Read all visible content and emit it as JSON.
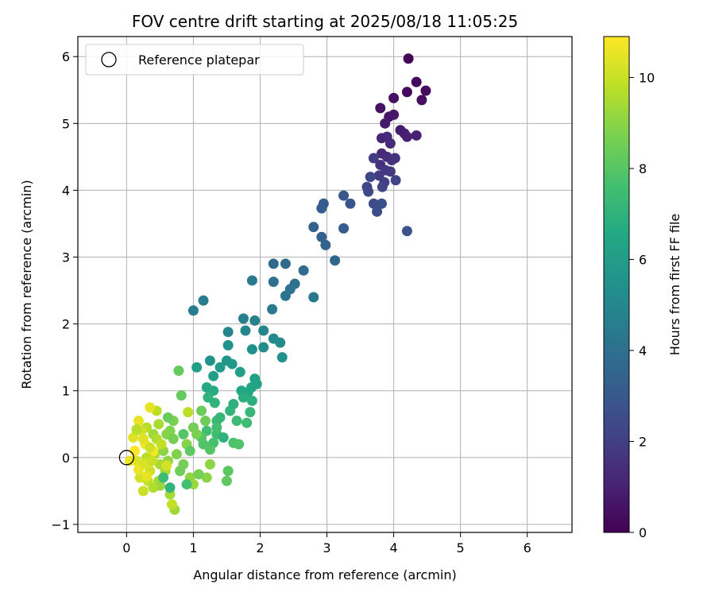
{
  "chart_data": {
    "type": "scatter",
    "title": "FOV centre drift starting at 2025/08/18 11:05:25",
    "xlabel": "Angular distance from reference (arcmin)",
    "ylabel": "Rotation from reference (arcmin)",
    "xlim": [
      -0.73,
      6.67
    ],
    "ylim": [
      -1.12,
      6.3
    ],
    "xticks": [
      0,
      1,
      2,
      3,
      4,
      5,
      6
    ],
    "yticks": [
      -1,
      0,
      1,
      2,
      3,
      4,
      5,
      6
    ],
    "grid": true,
    "legend": {
      "placement": "top-left",
      "label": "Reference platepar"
    },
    "reference_point": {
      "x": 0,
      "y": 0
    },
    "colorbar": {
      "label": "Hours from first FF file",
      "colormap": "viridis",
      "range": [
        0,
        10.9
      ],
      "ticks": [
        0,
        2,
        4,
        6,
        8,
        10
      ]
    },
    "points_columns": [
      "x",
      "y",
      "hours"
    ],
    "points": [
      [
        4.22,
        5.97,
        0.1
      ],
      [
        4.34,
        5.62,
        0.2
      ],
      [
        4.48,
        5.49,
        0.3
      ],
      [
        4.2,
        5.47,
        0.3
      ],
      [
        4.42,
        5.35,
        0.4
      ],
      [
        4.0,
        5.38,
        0.5
      ],
      [
        3.8,
        5.23,
        0.6
      ],
      [
        3.93,
        5.1,
        0.6
      ],
      [
        4.0,
        5.13,
        0.7
      ],
      [
        3.87,
        5.0,
        0.8
      ],
      [
        4.1,
        4.9,
        0.8
      ],
      [
        4.16,
        4.85,
        0.9
      ],
      [
        4.2,
        4.8,
        1.0
      ],
      [
        4.34,
        4.82,
        1.0
      ],
      [
        3.82,
        4.78,
        1.1
      ],
      [
        3.9,
        4.8,
        1.2
      ],
      [
        3.95,
        4.7,
        1.3
      ],
      [
        3.82,
        4.55,
        1.3
      ],
      [
        3.9,
        4.5,
        1.4
      ],
      [
        4.02,
        4.48,
        1.5
      ],
      [
        3.97,
        4.45,
        1.6
      ],
      [
        3.8,
        4.38,
        1.6
      ],
      [
        3.88,
        4.3,
        1.7
      ],
      [
        3.95,
        4.28,
        1.8
      ],
      [
        3.7,
        4.48,
        1.9
      ],
      [
        3.78,
        4.22,
        1.9
      ],
      [
        3.86,
        4.12,
        2.0
      ],
      [
        4.03,
        4.15,
        2.1
      ],
      [
        3.83,
        4.05,
        2.2
      ],
      [
        3.6,
        4.05,
        2.3
      ],
      [
        3.65,
        4.2,
        2.3
      ],
      [
        3.62,
        3.98,
        2.4
      ],
      [
        3.7,
        3.8,
        2.5
      ],
      [
        3.75,
        3.68,
        2.6
      ],
      [
        3.82,
        3.8,
        2.7
      ],
      [
        4.2,
        3.39,
        2.8
      ],
      [
        3.35,
        3.8,
        2.9
      ],
      [
        3.25,
        3.92,
        3.0
      ],
      [
        2.95,
        3.8,
        3.1
      ],
      [
        2.92,
        3.73,
        3.2
      ],
      [
        3.25,
        3.43,
        3.2
      ],
      [
        2.8,
        3.45,
        3.3
      ],
      [
        2.92,
        3.3,
        3.4
      ],
      [
        2.98,
        3.18,
        3.5
      ],
      [
        3.12,
        2.95,
        3.6
      ],
      [
        2.2,
        2.9,
        3.7
      ],
      [
        2.38,
        2.9,
        3.8
      ],
      [
        2.65,
        2.8,
        3.9
      ],
      [
        2.52,
        2.6,
        4.0
      ],
      [
        2.2,
        2.63,
        4.0
      ],
      [
        2.45,
        2.52,
        4.1
      ],
      [
        2.38,
        2.42,
        4.2
      ],
      [
        2.8,
        2.4,
        4.3
      ],
      [
        1.88,
        2.65,
        4.4
      ],
      [
        2.18,
        2.22,
        4.4
      ],
      [
        1.0,
        2.2,
        4.5
      ],
      [
        1.15,
        2.35,
        4.6
      ],
      [
        1.75,
        2.08,
        4.7
      ],
      [
        1.92,
        2.05,
        4.8
      ],
      [
        1.52,
        1.88,
        4.9
      ],
      [
        1.78,
        1.9,
        5.0
      ],
      [
        2.05,
        1.9,
        5.0
      ],
      [
        2.2,
        1.78,
        5.1
      ],
      [
        2.3,
        1.72,
        5.2
      ],
      [
        2.05,
        1.65,
        5.3
      ],
      [
        1.88,
        1.62,
        5.4
      ],
      [
        1.52,
        1.68,
        5.5
      ],
      [
        2.33,
        1.5,
        5.5
      ],
      [
        1.25,
        1.45,
        5.6
      ],
      [
        1.5,
        1.45,
        5.7
      ],
      [
        1.58,
        1.4,
        5.8
      ],
      [
        1.4,
        1.35,
        5.9
      ],
      [
        1.05,
        1.35,
        6.0
      ],
      [
        1.3,
        1.22,
        6.0
      ],
      [
        1.7,
        1.28,
        6.1
      ],
      [
        1.92,
        1.18,
        6.2
      ],
      [
        1.95,
        1.1,
        6.3
      ],
      [
        1.87,
        1.05,
        6.4
      ],
      [
        1.82,
        0.98,
        6.5
      ],
      [
        1.72,
        1.0,
        6.5
      ],
      [
        1.2,
        1.05,
        6.6
      ],
      [
        1.3,
        1.0,
        6.7
      ],
      [
        1.75,
        0.9,
        6.8
      ],
      [
        1.88,
        0.85,
        6.9
      ],
      [
        1.22,
        0.9,
        7.0
      ],
      [
        1.32,
        0.82,
        7.0
      ],
      [
        1.55,
        0.7,
        7.1
      ],
      [
        1.85,
        0.68,
        7.2
      ],
      [
        1.35,
        0.55,
        7.3
      ],
      [
        1.65,
        0.55,
        7.4
      ],
      [
        1.8,
        0.52,
        7.5
      ],
      [
        1.35,
        0.35,
        7.5
      ],
      [
        1.2,
        0.4,
        7.6
      ],
      [
        1.3,
        0.22,
        7.7
      ],
      [
        1.6,
        0.22,
        7.8
      ],
      [
        1.68,
        0.2,
        7.9
      ],
      [
        1.12,
        0.3,
        8.0
      ],
      [
        1.25,
        0.12,
        8.0
      ],
      [
        1.52,
        -0.2,
        8.1
      ],
      [
        1.5,
        -0.35,
        8.2
      ],
      [
        0.78,
        1.3,
        8.3
      ],
      [
        0.82,
        0.93,
        8.3
      ],
      [
        1.12,
        0.7,
        8.4
      ],
      [
        1.18,
        0.55,
        8.5
      ],
      [
        1.0,
        0.45,
        8.6
      ],
      [
        1.05,
        0.35,
        8.7
      ],
      [
        0.7,
        0.55,
        8.7
      ],
      [
        0.65,
        0.4,
        8.8
      ],
      [
        0.9,
        0.2,
        8.9
      ],
      [
        1.25,
        -0.1,
        9.0
      ],
      [
        1.2,
        -0.3,
        9.0
      ],
      [
        0.95,
        -0.3,
        9.1
      ],
      [
        1.0,
        -0.4,
        9.2
      ],
      [
        0.72,
        -0.78,
        9.3
      ],
      [
        0.65,
        -0.55,
        9.4
      ],
      [
        0.48,
        -0.35,
        9.4
      ],
      [
        0.5,
        -0.1,
        9.5
      ],
      [
        0.42,
        0.05,
        9.6
      ],
      [
        0.3,
        0.45,
        9.7
      ],
      [
        0.45,
        0.7,
        9.8
      ],
      [
        0.92,
        0.68,
        9.8
      ],
      [
        0.68,
        -0.7,
        9.9
      ],
      [
        0.25,
        -0.5,
        10.0
      ],
      [
        0.35,
        -0.2,
        10.1
      ],
      [
        0.2,
        -0.3,
        10.2
      ],
      [
        0.15,
        -0.05,
        10.3
      ],
      [
        0.1,
        0.3,
        10.4
      ],
      [
        0.18,
        0.55,
        10.5
      ],
      [
        0.35,
        0.75,
        10.5
      ],
      [
        0.05,
        -0.05,
        10.6
      ],
      [
        0.28,
        0.2,
        10.7
      ],
      [
        0.4,
        0.1,
        10.8
      ],
      [
        0.12,
        0.1,
        10.9
      ],
      [
        0.6,
        0.35,
        8.9
      ],
      [
        0.55,
        0.1,
        9.0
      ],
      [
        0.58,
        -0.2,
        9.4
      ],
      [
        0.75,
        0.05,
        8.8
      ],
      [
        0.85,
        -0.1,
        8.6
      ],
      [
        0.62,
        0.6,
        8.4
      ],
      [
        0.4,
        0.35,
        9.3
      ],
      [
        0.3,
        0.0,
        9.8
      ],
      [
        0.22,
        0.4,
        10.2
      ],
      [
        0.18,
        -0.18,
        10.6
      ],
      [
        0.5,
        -0.42,
        9.2
      ],
      [
        0.7,
        0.28,
        8.6
      ],
      [
        0.45,
        0.28,
        9.6
      ],
      [
        0.32,
        -0.35,
        9.9
      ],
      [
        0.8,
        -0.2,
        8.5
      ],
      [
        0.95,
        0.1,
        8.2
      ],
      [
        0.62,
        -0.05,
        9.1
      ],
      [
        0.28,
        -0.1,
        10.3
      ],
      [
        0.38,
        -0.05,
        10.0
      ],
      [
        1.08,
        -0.25,
        8.6
      ],
      [
        1.15,
        0.2,
        7.9
      ],
      [
        0.9,
        -0.4,
        7.6
      ],
      [
        0.55,
        -0.3,
        7.4
      ],
      [
        0.65,
        -0.45,
        7.1
      ],
      [
        1.45,
        0.3,
        7.0
      ],
      [
        1.4,
        0.6,
        7.2
      ],
      [
        1.6,
        0.8,
        6.9
      ],
      [
        1.35,
        0.45,
        7.6
      ],
      [
        0.85,
        0.35,
        8.0
      ],
      [
        0.48,
        0.5,
        9.5
      ],
      [
        0.35,
        0.15,
        10.1
      ],
      [
        0.25,
        0.28,
        10.4
      ],
      [
        0.15,
        0.42,
        9.7
      ],
      [
        0.52,
        0.2,
        9.9
      ],
      [
        0.6,
        -0.12,
        10.2
      ],
      [
        0.3,
        -0.28,
        10.5
      ],
      [
        0.4,
        -0.45,
        9.6
      ]
    ]
  }
}
